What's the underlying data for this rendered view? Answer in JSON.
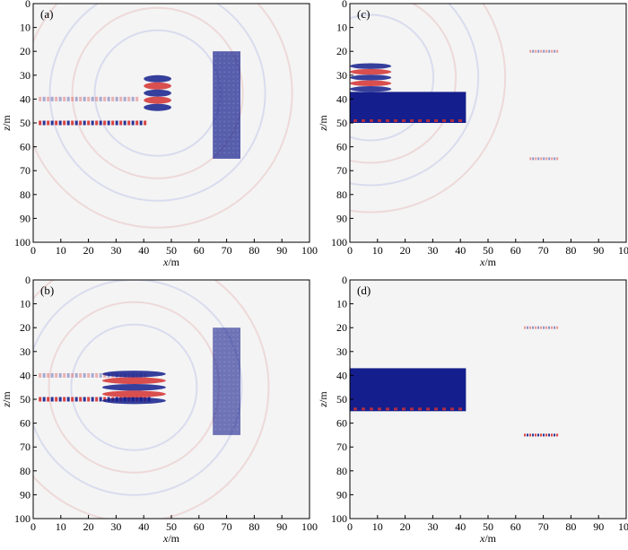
{
  "figure": {
    "background": "#f4f4f4",
    "colors": {
      "positive": "#d43030",
      "negative": "#141e8c",
      "faint_negative": "#6a76c4"
    },
    "axes": {
      "x_ticks": [
        "0",
        "10",
        "20",
        "30",
        "40",
        "50",
        "60",
        "70",
        "80",
        "90",
        "100"
      ],
      "z_ticks": [
        "10",
        "20",
        "30",
        "40",
        "50",
        "60",
        "70",
        "80",
        "90",
        "100"
      ],
      "z_top_tick": "0",
      "x_label_var": "x",
      "x_label_unit": "/m",
      "z_label_var": "z",
      "z_label_unit": "/m"
    },
    "panels": [
      {
        "tag": "(a)"
      },
      {
        "tag": "(c)"
      },
      {
        "tag": "(b)"
      },
      {
        "tag": "(d)"
      }
    ]
  },
  "chart_data": [
    {
      "type": "heatmap",
      "panel": "(a)",
      "xlabel": "x/m",
      "ylabel": "z/m",
      "xlim": [
        0,
        100
      ],
      "ylim": [
        100,
        0
      ],
      "grid": false,
      "features": [
        {
          "kind": "block",
          "x": [
            65,
            75
          ],
          "z": [
            20,
            65
          ],
          "sign": "negative",
          "intensity": 0.7
        },
        {
          "kind": "dashed_line",
          "x": [
            2,
            40
          ],
          "z": 50,
          "sign": "alternating"
        },
        {
          "kind": "dashed_line",
          "x": [
            2,
            38
          ],
          "z": 40,
          "sign": "alternating_faint"
        },
        {
          "kind": "wavefront",
          "x": [
            40,
            50
          ],
          "z": [
            30,
            45
          ],
          "sign": "alternating"
        }
      ]
    },
    {
      "type": "heatmap",
      "panel": "(c)",
      "xlabel": "x/m",
      "ylabel": "z/m",
      "xlim": [
        0,
        100
      ],
      "ylim": [
        100,
        0
      ],
      "grid": false,
      "features": [
        {
          "kind": "block",
          "x": [
            0,
            42
          ],
          "z": [
            37,
            50
          ],
          "sign": "negative",
          "intensity": 1.0
        },
        {
          "kind": "wavefront",
          "x": [
            0,
            15
          ],
          "z": [
            25,
            37
          ],
          "sign": "alternating"
        },
        {
          "kind": "marker",
          "x": [
            65,
            75
          ],
          "z": 20,
          "sign": "alternating_faint"
        },
        {
          "kind": "marker",
          "x": [
            65,
            75
          ],
          "z": 65,
          "sign": "alternating_faint"
        }
      ]
    },
    {
      "type": "heatmap",
      "panel": "(b)",
      "xlabel": "x/m",
      "ylabel": "z/m",
      "xlim": [
        0,
        100
      ],
      "ylim": [
        100,
        0
      ],
      "grid": false,
      "features": [
        {
          "kind": "block",
          "x": [
            65,
            75
          ],
          "z": [
            20,
            65
          ],
          "sign": "negative",
          "intensity": 0.6
        },
        {
          "kind": "dashed_line",
          "x": [
            2,
            42
          ],
          "z": 50,
          "sign": "alternating"
        },
        {
          "kind": "dashed_line",
          "x": [
            2,
            40
          ],
          "z": 40,
          "sign": "alternating_faint"
        },
        {
          "kind": "wavefront",
          "x": [
            25,
            48
          ],
          "z": [
            38,
            52
          ],
          "sign": "alternating"
        }
      ]
    },
    {
      "type": "heatmap",
      "panel": "(d)",
      "xlabel": "x/m",
      "ylabel": "z/m",
      "xlim": [
        0,
        100
      ],
      "ylim": [
        100,
        0
      ],
      "grid": false,
      "features": [
        {
          "kind": "block",
          "x": [
            0,
            42
          ],
          "z": [
            37,
            55
          ],
          "sign": "negative",
          "intensity": 1.0
        },
        {
          "kind": "marker",
          "x": [
            63,
            75
          ],
          "z": 20,
          "sign": "alternating_faint"
        },
        {
          "kind": "marker",
          "x": [
            63,
            75
          ],
          "z": 65,
          "sign": "alternating"
        }
      ]
    }
  ]
}
